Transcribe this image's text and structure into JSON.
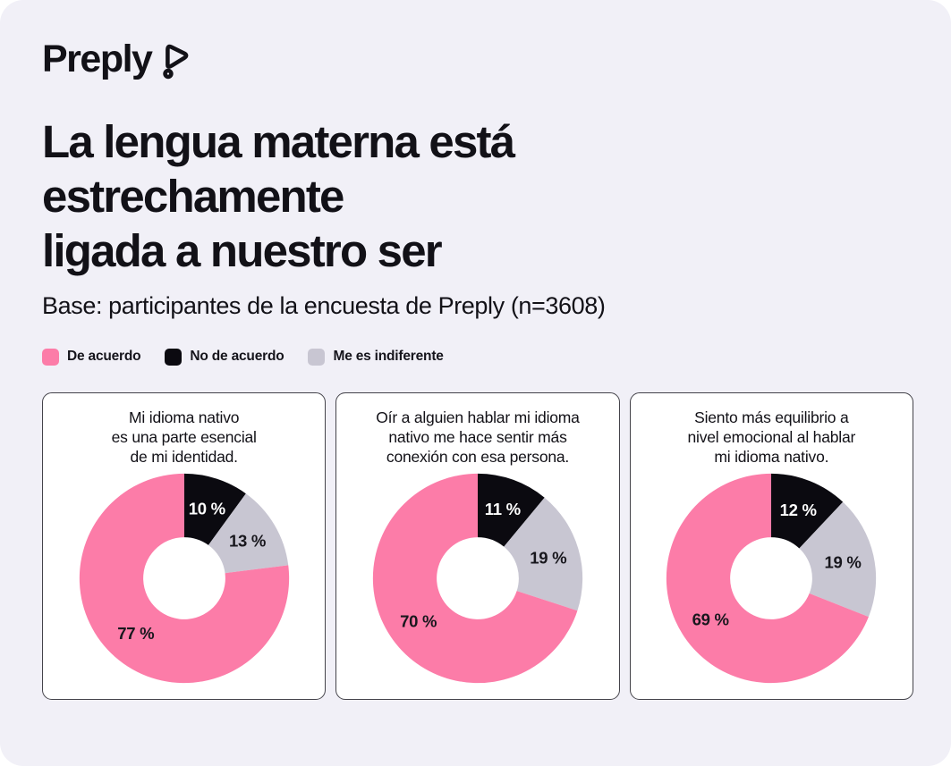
{
  "page": {
    "background_color": "#F1F0F7",
    "logo": {
      "wordmark": "Preply",
      "icon": "preply-play-bubble-icon",
      "color": "#121117"
    },
    "title": "La lengua materna está\nestrechamente\nligada a nuestro ser",
    "subtitle": "Base: participantes de la encuesta de Preply (n=3608)"
  },
  "legend": {
    "position": "top",
    "items": [
      {
        "label": "De acuerdo",
        "color": "#FC7CA8"
      },
      {
        "label": "No de acuerdo",
        "color": "#0B0A10"
      },
      {
        "label": "Me es indiferente",
        "color": "#C8C6D2"
      }
    ]
  },
  "chart_data": [
    {
      "type": "pie",
      "variant": "donut",
      "title": "Mi idioma nativo\nes una parte esencial\nde mi identidad.",
      "unit": "%",
      "start_angle_deg": 0,
      "clockwise": true,
      "slices": [
        {
          "series": "No de acuerdo",
          "value": 10,
          "display": "10 %",
          "color": "#0B0A10",
          "label_color": "#FFFFFF"
        },
        {
          "series": "Me es indiferente",
          "value": 13,
          "display": "13 %",
          "color": "#C8C6D2",
          "label_color": "#18171D"
        },
        {
          "series": "De acuerdo",
          "value": 77,
          "display": "77 %",
          "color": "#FC7CA8",
          "label_color": "#18171D"
        }
      ]
    },
    {
      "type": "pie",
      "variant": "donut",
      "title": "Oír a alguien hablar mi idioma\nnativo me hace sentir más\nconexión con esa persona.",
      "unit": "%",
      "start_angle_deg": 0,
      "clockwise": true,
      "slices": [
        {
          "series": "No de acuerdo",
          "value": 11,
          "display": "11 %",
          "color": "#0B0A10",
          "label_color": "#FFFFFF"
        },
        {
          "series": "Me es indiferente",
          "value": 19,
          "display": "19 %",
          "color": "#C8C6D2",
          "label_color": "#18171D"
        },
        {
          "series": "De acuerdo",
          "value": 70,
          "display": "70 %",
          "color": "#FC7CA8",
          "label_color": "#18171D"
        }
      ]
    },
    {
      "type": "pie",
      "variant": "donut",
      "title": "Siento más equilibrio a\nnivel emocional al hablar\nmi idioma nativo.",
      "unit": "%",
      "start_angle_deg": 0,
      "clockwise": true,
      "slices": [
        {
          "series": "No de acuerdo",
          "value": 12,
          "display": "12 %",
          "color": "#0B0A10",
          "label_color": "#FFFFFF"
        },
        {
          "series": "Me es indiferente",
          "value": 19,
          "display": "19 %",
          "color": "#C8C6D2",
          "label_color": "#18171D"
        },
        {
          "series": "De acuerdo",
          "value": 69,
          "display": "69 %",
          "color": "#FC7CA8",
          "label_color": "#18171D"
        }
      ]
    }
  ]
}
